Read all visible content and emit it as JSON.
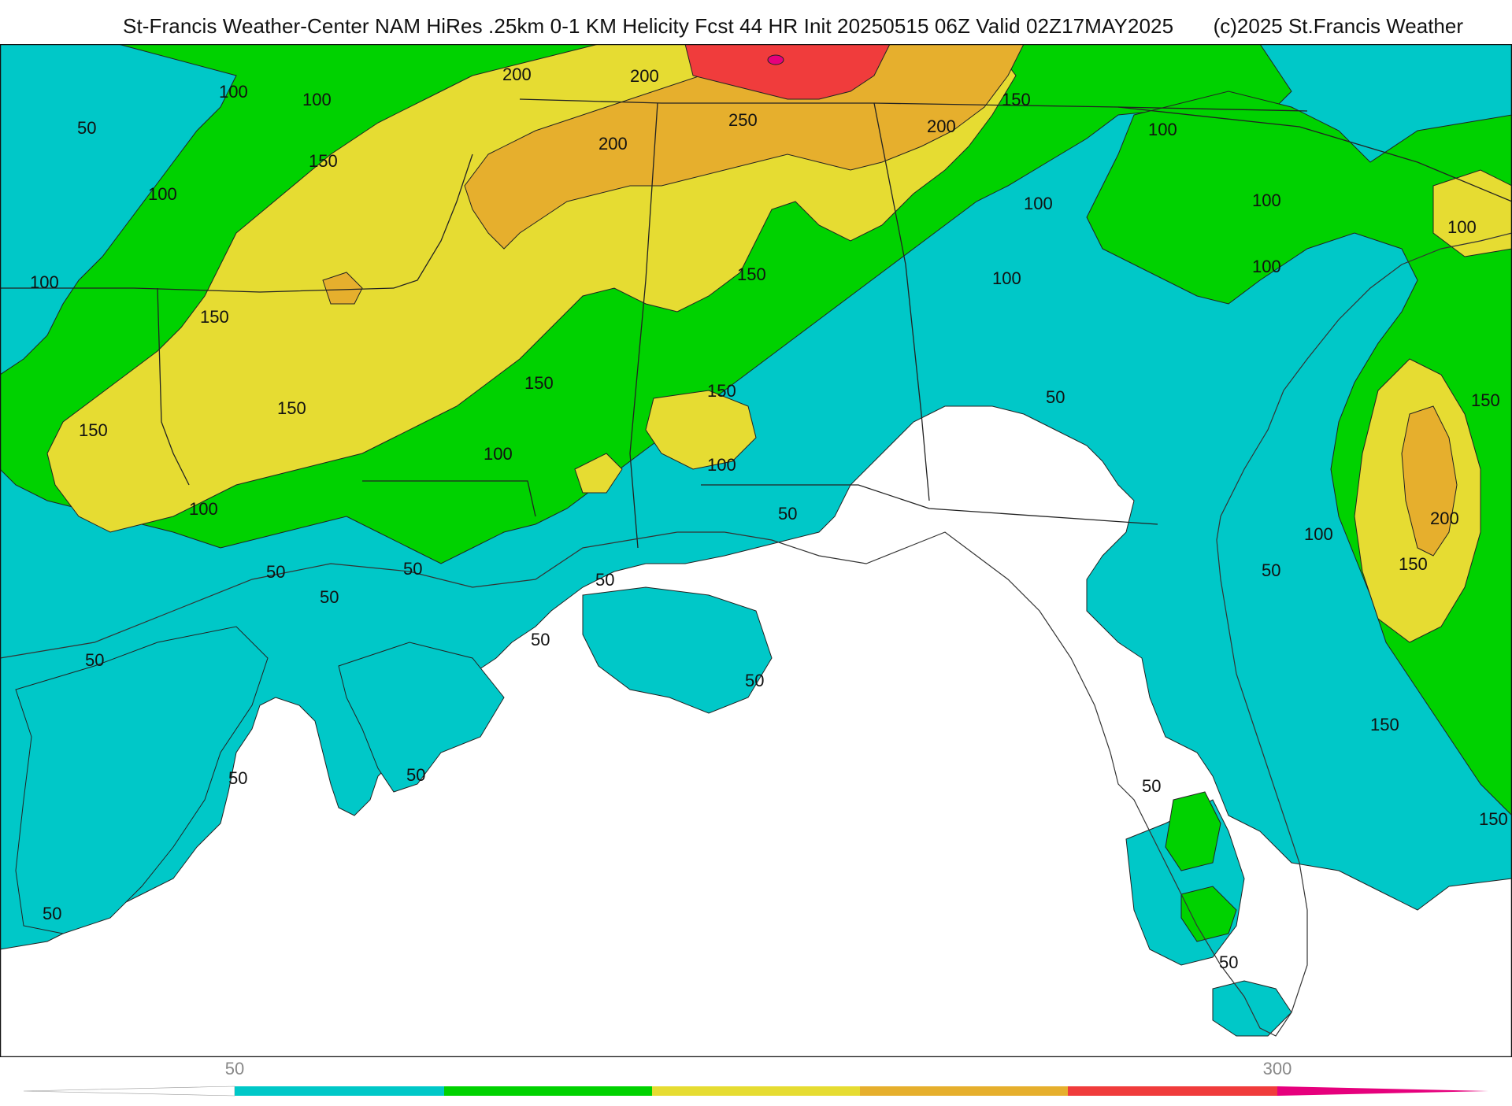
{
  "header": {
    "title": "St-Francis Weather-Center NAM HiRes .25km 0-1 KM Helicity Fcst 44 HR Init 20250515 06Z  Valid 02Z17MAY2025",
    "copyright": "(c)2025 St.Francis Weather"
  },
  "colors": {
    "band_0_50": "#ffffff",
    "band_50_100": "#00c8c8",
    "band_100_150": "#00d200",
    "band_150_200": "#e6dc32",
    "band_200_250": "#e6af2d",
    "band_250_300": "#f03c3c",
    "band_300_plus": "#e6007d"
  },
  "colorbar": {
    "labels": [
      {
        "text": "50",
        "value": 50
      },
      {
        "text": "300",
        "value": 300
      }
    ]
  },
  "contour_labels": [
    {
      "text": "100"
    },
    {
      "text": "100"
    },
    {
      "text": "50"
    },
    {
      "text": "200"
    },
    {
      "text": "200"
    },
    {
      "text": "150"
    },
    {
      "text": "150"
    },
    {
      "text": "100"
    },
    {
      "text": "100"
    },
    {
      "text": "250"
    },
    {
      "text": "200"
    },
    {
      "text": "200"
    },
    {
      "text": "100"
    },
    {
      "text": "100"
    },
    {
      "text": "100"
    },
    {
      "text": "100"
    },
    {
      "text": "100"
    },
    {
      "text": "150"
    },
    {
      "text": "150"
    },
    {
      "text": "100"
    },
    {
      "text": "150"
    },
    {
      "text": "150"
    },
    {
      "text": "150"
    },
    {
      "text": "150"
    },
    {
      "text": "150"
    },
    {
      "text": "50"
    },
    {
      "text": "100"
    },
    {
      "text": "100"
    },
    {
      "text": "100"
    },
    {
      "text": "50"
    },
    {
      "text": "50"
    },
    {
      "text": "50"
    },
    {
      "text": "50"
    },
    {
      "text": "50"
    },
    {
      "text": "50"
    },
    {
      "text": "50"
    },
    {
      "text": "50"
    },
    {
      "text": "50"
    },
    {
      "text": "50"
    },
    {
      "text": "50"
    },
    {
      "text": "50"
    },
    {
      "text": "50"
    },
    {
      "text": "150"
    },
    {
      "text": "200"
    },
    {
      "text": "100"
    },
    {
      "text": "150"
    },
    {
      "text": "50"
    },
    {
      "text": "150"
    }
  ]
}
